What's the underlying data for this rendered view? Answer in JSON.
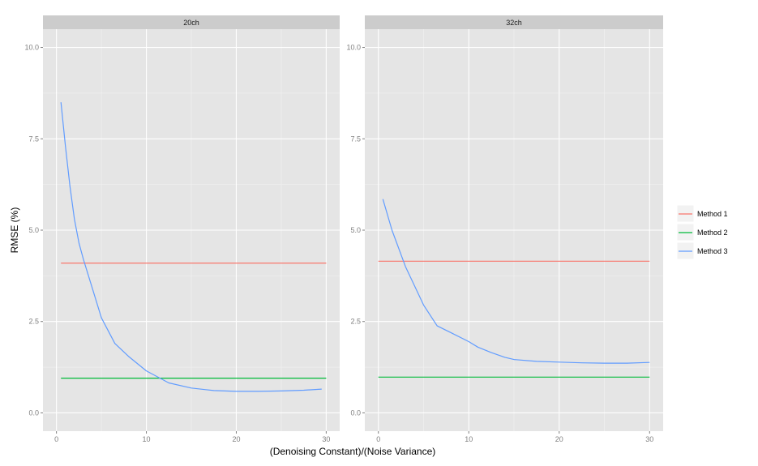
{
  "chart_data": {
    "type": "line",
    "xlabel": "(Denoising Constant)/(Noise Variance)",
    "ylabel": "RMSE (%)",
    "xlim": [
      -1.5,
      31.5
    ],
    "ylim": [
      -0.5,
      10.5
    ],
    "x_ticks": [
      0,
      10,
      20,
      30
    ],
    "x_tick_labels": [
      "0",
      "10",
      "20",
      "30"
    ],
    "y_ticks": [
      0.0,
      2.5,
      5.0,
      7.5,
      10.0
    ],
    "y_tick_labels": [
      "0.0",
      "2.5",
      "5.0",
      "7.5",
      "10.0"
    ],
    "grid": true,
    "legend_position": "right",
    "legend": [
      "Method 1",
      "Method 2",
      "Method 3"
    ],
    "colors": {
      "Method 1": "#F8766D",
      "Method 2": "#00BA38",
      "Method 3": "#619CFF",
      "panel_bg": "#E5E5E5",
      "strip_bg": "#CCCCCC",
      "grid": "#FFFFFF"
    },
    "panels": [
      {
        "label": "20ch",
        "series": [
          {
            "name": "Method 1",
            "x": [
              0.5,
              30
            ],
            "y": [
              4.1,
              4.1
            ]
          },
          {
            "name": "Method 2",
            "x": [
              0.5,
              30
            ],
            "y": [
              0.95,
              0.95
            ]
          },
          {
            "name": "Method 3",
            "x": [
              0.5,
              1,
              1.5,
              2,
              2.5,
              3,
              4,
              5,
              6.5,
              8,
              10,
              12.5,
              15,
              17.5,
              20,
              22.5,
              25,
              27.5,
              29.5
            ],
            "y": [
              8.5,
              7.3,
              6.2,
              5.3,
              4.65,
              4.2,
              3.4,
              2.6,
              1.9,
              1.55,
              1.15,
              0.82,
              0.68,
              0.61,
              0.59,
              0.59,
              0.6,
              0.62,
              0.65
            ]
          }
        ]
      },
      {
        "label": "32ch",
        "series": [
          {
            "name": "Method 1",
            "x": [
              0,
              30
            ],
            "y": [
              4.15,
              4.15
            ]
          },
          {
            "name": "Method 2",
            "x": [
              0,
              30
            ],
            "y": [
              0.98,
              0.98
            ]
          },
          {
            "name": "Method 3",
            "x": [
              0.5,
              1.5,
              3,
              5,
              6.5,
              8,
              10,
              11,
              12.5,
              14,
              15,
              17.5,
              20,
              22.5,
              25,
              27.5,
              30
            ],
            "y": [
              5.85,
              5.0,
              4.0,
              2.95,
              2.38,
              2.2,
              1.95,
              1.8,
              1.65,
              1.52,
              1.46,
              1.41,
              1.39,
              1.37,
              1.36,
              1.36,
              1.38
            ]
          }
        ]
      }
    ]
  }
}
